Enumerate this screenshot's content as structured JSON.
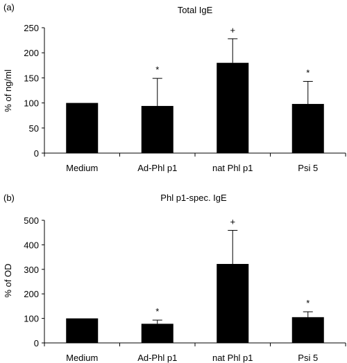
{
  "chart_data": [
    {
      "type": "bar",
      "panel_label": "(a)",
      "title": "Total IgE",
      "ylabel": "% of ng/ml",
      "xlabel": "",
      "categories": [
        "Medium",
        "Ad-Phl p1",
        "nat Phl p1",
        "Psi 5"
      ],
      "values": [
        100,
        94,
        180,
        98
      ],
      "error_plus": [
        0,
        55,
        48,
        45
      ],
      "annotations": [
        "",
        "*",
        "+",
        "*"
      ],
      "ylim": [
        0,
        250
      ],
      "yticks": [
        0,
        50,
        100,
        150,
        200,
        250
      ],
      "grid": false,
      "bar_color": "#000000"
    },
    {
      "type": "bar",
      "panel_label": "(b)",
      "title": "Phl p1-spec. IgE",
      "ylabel": "% of OD",
      "xlabel": "",
      "categories": [
        "Medium",
        "Ad-Phl p1",
        "nat Phl p1",
        "Psi 5"
      ],
      "values": [
        100,
        78,
        322,
        105
      ],
      "error_plus": [
        0,
        15,
        137,
        22
      ],
      "annotations": [
        "",
        "*",
        "+",
        "*"
      ],
      "ylim": [
        0,
        500
      ],
      "yticks": [
        0,
        100,
        200,
        300,
        400,
        500
      ],
      "grid": false,
      "bar_color": "#000000"
    }
  ]
}
